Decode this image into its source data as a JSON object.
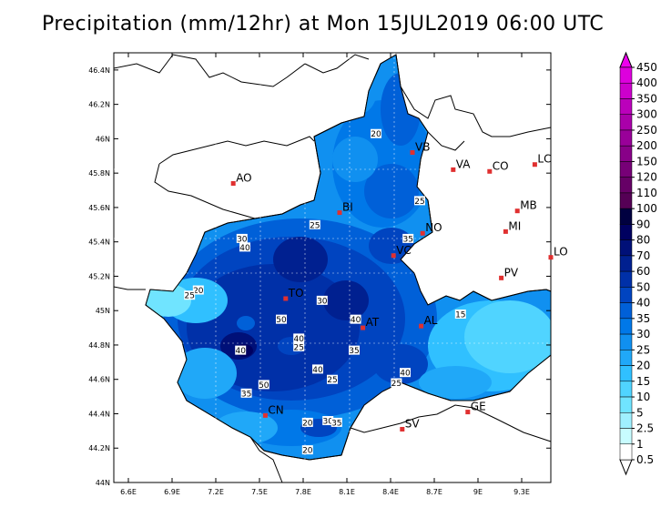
{
  "title": "Precipitation (mm/12hr) at Mon 15JUL2019 06:00 UTC",
  "map": {
    "lat_ticks": [
      {
        "value": 46.4,
        "label": "46.4N"
      },
      {
        "value": 46.2,
        "label": "46.2N"
      },
      {
        "value": 46.0,
        "label": "46N"
      },
      {
        "value": 45.8,
        "label": "45.8N"
      },
      {
        "value": 45.6,
        "label": "45.6N"
      },
      {
        "value": 45.4,
        "label": "45.4N"
      },
      {
        "value": 45.2,
        "label": "45.2N"
      },
      {
        "value": 45.0,
        "label": "45N"
      },
      {
        "value": 44.8,
        "label": "44.8N"
      },
      {
        "value": 44.6,
        "label": "44.6N"
      },
      {
        "value": 44.4,
        "label": "44.4N"
      },
      {
        "value": 44.2,
        "label": "44.2N"
      },
      {
        "value": 44.0,
        "label": "44N"
      }
    ],
    "lon_ticks": [
      {
        "value": 6.6,
        "label": "6.6E"
      },
      {
        "value": 6.9,
        "label": "6.9E"
      },
      {
        "value": 7.2,
        "label": "7.2E"
      },
      {
        "value": 7.5,
        "label": "7.5E"
      },
      {
        "value": 7.8,
        "label": "7.8E"
      },
      {
        "value": 8.1,
        "label": "8.1E"
      },
      {
        "value": 8.4,
        "label": "8.4E"
      },
      {
        "value": 8.7,
        "label": "8.7E"
      },
      {
        "value": 9.0,
        "label": "9E"
      },
      {
        "value": 9.3,
        "label": "9.3E"
      }
    ],
    "lon_range": [
      6.5,
      9.5
    ],
    "lat_range": [
      44.0,
      46.5
    ],
    "cities": [
      {
        "name": "AO",
        "lon": 7.32,
        "lat": 45.74
      },
      {
        "name": "BI",
        "lon": 8.05,
        "lat": 45.57
      },
      {
        "name": "VB",
        "lon": 8.55,
        "lat": 45.92
      },
      {
        "name": "VA",
        "lon": 8.83,
        "lat": 45.82
      },
      {
        "name": "CO",
        "lon": 9.08,
        "lat": 45.81
      },
      {
        "name": "LC",
        "lon": 9.39,
        "lat": 45.85
      },
      {
        "name": "MB",
        "lon": 9.27,
        "lat": 45.58
      },
      {
        "name": "MI",
        "lon": 9.19,
        "lat": 45.46
      },
      {
        "name": "LO",
        "lon": 9.5,
        "lat": 45.31
      },
      {
        "name": "NO",
        "lon": 8.62,
        "lat": 45.45
      },
      {
        "name": "VC",
        "lon": 8.42,
        "lat": 45.32
      },
      {
        "name": "PV",
        "lon": 9.16,
        "lat": 45.19
      },
      {
        "name": "TO",
        "lon": 7.68,
        "lat": 45.07
      },
      {
        "name": "AT",
        "lon": 8.21,
        "lat": 44.9
      },
      {
        "name": "AL",
        "lon": 8.61,
        "lat": 44.91
      },
      {
        "name": "GE",
        "lon": 8.93,
        "lat": 44.41
      },
      {
        "name": "CN",
        "lon": 7.54,
        "lat": 44.39
      },
      {
        "name": "SV",
        "lon": 8.48,
        "lat": 44.31
      }
    ],
    "contour_labels": [
      {
        "text": "20",
        "lon": 8.3,
        "lat": 46.03
      },
      {
        "text": "25",
        "lon": 8.6,
        "lat": 45.64
      },
      {
        "text": "25",
        "lon": 7.88,
        "lat": 45.5
      },
      {
        "text": "35",
        "lon": 8.52,
        "lat": 45.42
      },
      {
        "text": "30",
        "lon": 7.38,
        "lat": 45.42
      },
      {
        "text": "40",
        "lon": 7.4,
        "lat": 45.37
      },
      {
        "text": "20",
        "lon": 7.08,
        "lat": 45.12
      },
      {
        "text": "25",
        "lon": 7.02,
        "lat": 45.09
      },
      {
        "text": "30",
        "lon": 7.93,
        "lat": 45.06
      },
      {
        "text": "50",
        "lon": 7.65,
        "lat": 44.95
      },
      {
        "text": "40",
        "lon": 8.16,
        "lat": 44.95
      },
      {
        "text": "15",
        "lon": 8.88,
        "lat": 44.98
      },
      {
        "text": "40",
        "lon": 7.77,
        "lat": 44.84
      },
      {
        "text": "25",
        "lon": 7.77,
        "lat": 44.79
      },
      {
        "text": "40",
        "lon": 7.37,
        "lat": 44.77
      },
      {
        "text": "35",
        "lon": 8.15,
        "lat": 44.77
      },
      {
        "text": "40",
        "lon": 7.9,
        "lat": 44.66
      },
      {
        "text": "25",
        "lon": 8.0,
        "lat": 44.6
      },
      {
        "text": "40",
        "lon": 8.5,
        "lat": 44.64
      },
      {
        "text": "25",
        "lon": 8.44,
        "lat": 44.58
      },
      {
        "text": "50",
        "lon": 7.53,
        "lat": 44.57
      },
      {
        "text": "35",
        "lon": 7.41,
        "lat": 44.52
      },
      {
        "text": "20",
        "lon": 7.83,
        "lat": 44.35
      },
      {
        "text": "30",
        "lon": 7.97,
        "lat": 44.36
      },
      {
        "text": "35",
        "lon": 8.03,
        "lat": 44.35
      },
      {
        "text": "20",
        "lon": 7.83,
        "lat": 44.19
      }
    ]
  },
  "legend": {
    "items": [
      {
        "label": "450",
        "color": "#ee00ee"
      },
      {
        "label": "400",
        "color": "#dd00dd"
      },
      {
        "label": "350",
        "color": "#cc00cc"
      },
      {
        "label": "300",
        "color": "#bb00bb"
      },
      {
        "label": "250",
        "color": "#aa00aa"
      },
      {
        "label": "200",
        "color": "#990099"
      },
      {
        "label": "150",
        "color": "#880088"
      },
      {
        "label": "120",
        "color": "#770077"
      },
      {
        "label": "110",
        "color": "#660066"
      },
      {
        "label": "100",
        "color": "#550055"
      },
      {
        "label": "90",
        "color": "#000040"
      },
      {
        "label": "80",
        "color": "#000060"
      },
      {
        "label": "70",
        "color": "#001078"
      },
      {
        "label": "60",
        "color": "#002090"
      },
      {
        "label": "50",
        "color": "#0030a8"
      },
      {
        "label": "40",
        "color": "#0044c0"
      },
      {
        "label": "35",
        "color": "#0060d8"
      },
      {
        "label": "30",
        "color": "#0078e8"
      },
      {
        "label": "25",
        "color": "#1090f0"
      },
      {
        "label": "20",
        "color": "#20a8f8"
      },
      {
        "label": "15",
        "color": "#30c0ff"
      },
      {
        "label": "10",
        "color": "#50d4ff"
      },
      {
        "label": "5",
        "color": "#70e4ff"
      },
      {
        "label": "2.5",
        "color": "#a0f0ff"
      },
      {
        "label": "1",
        "color": "#c8fcff"
      },
      {
        "label": "0.5",
        "color": "#ffffff"
      }
    ]
  }
}
